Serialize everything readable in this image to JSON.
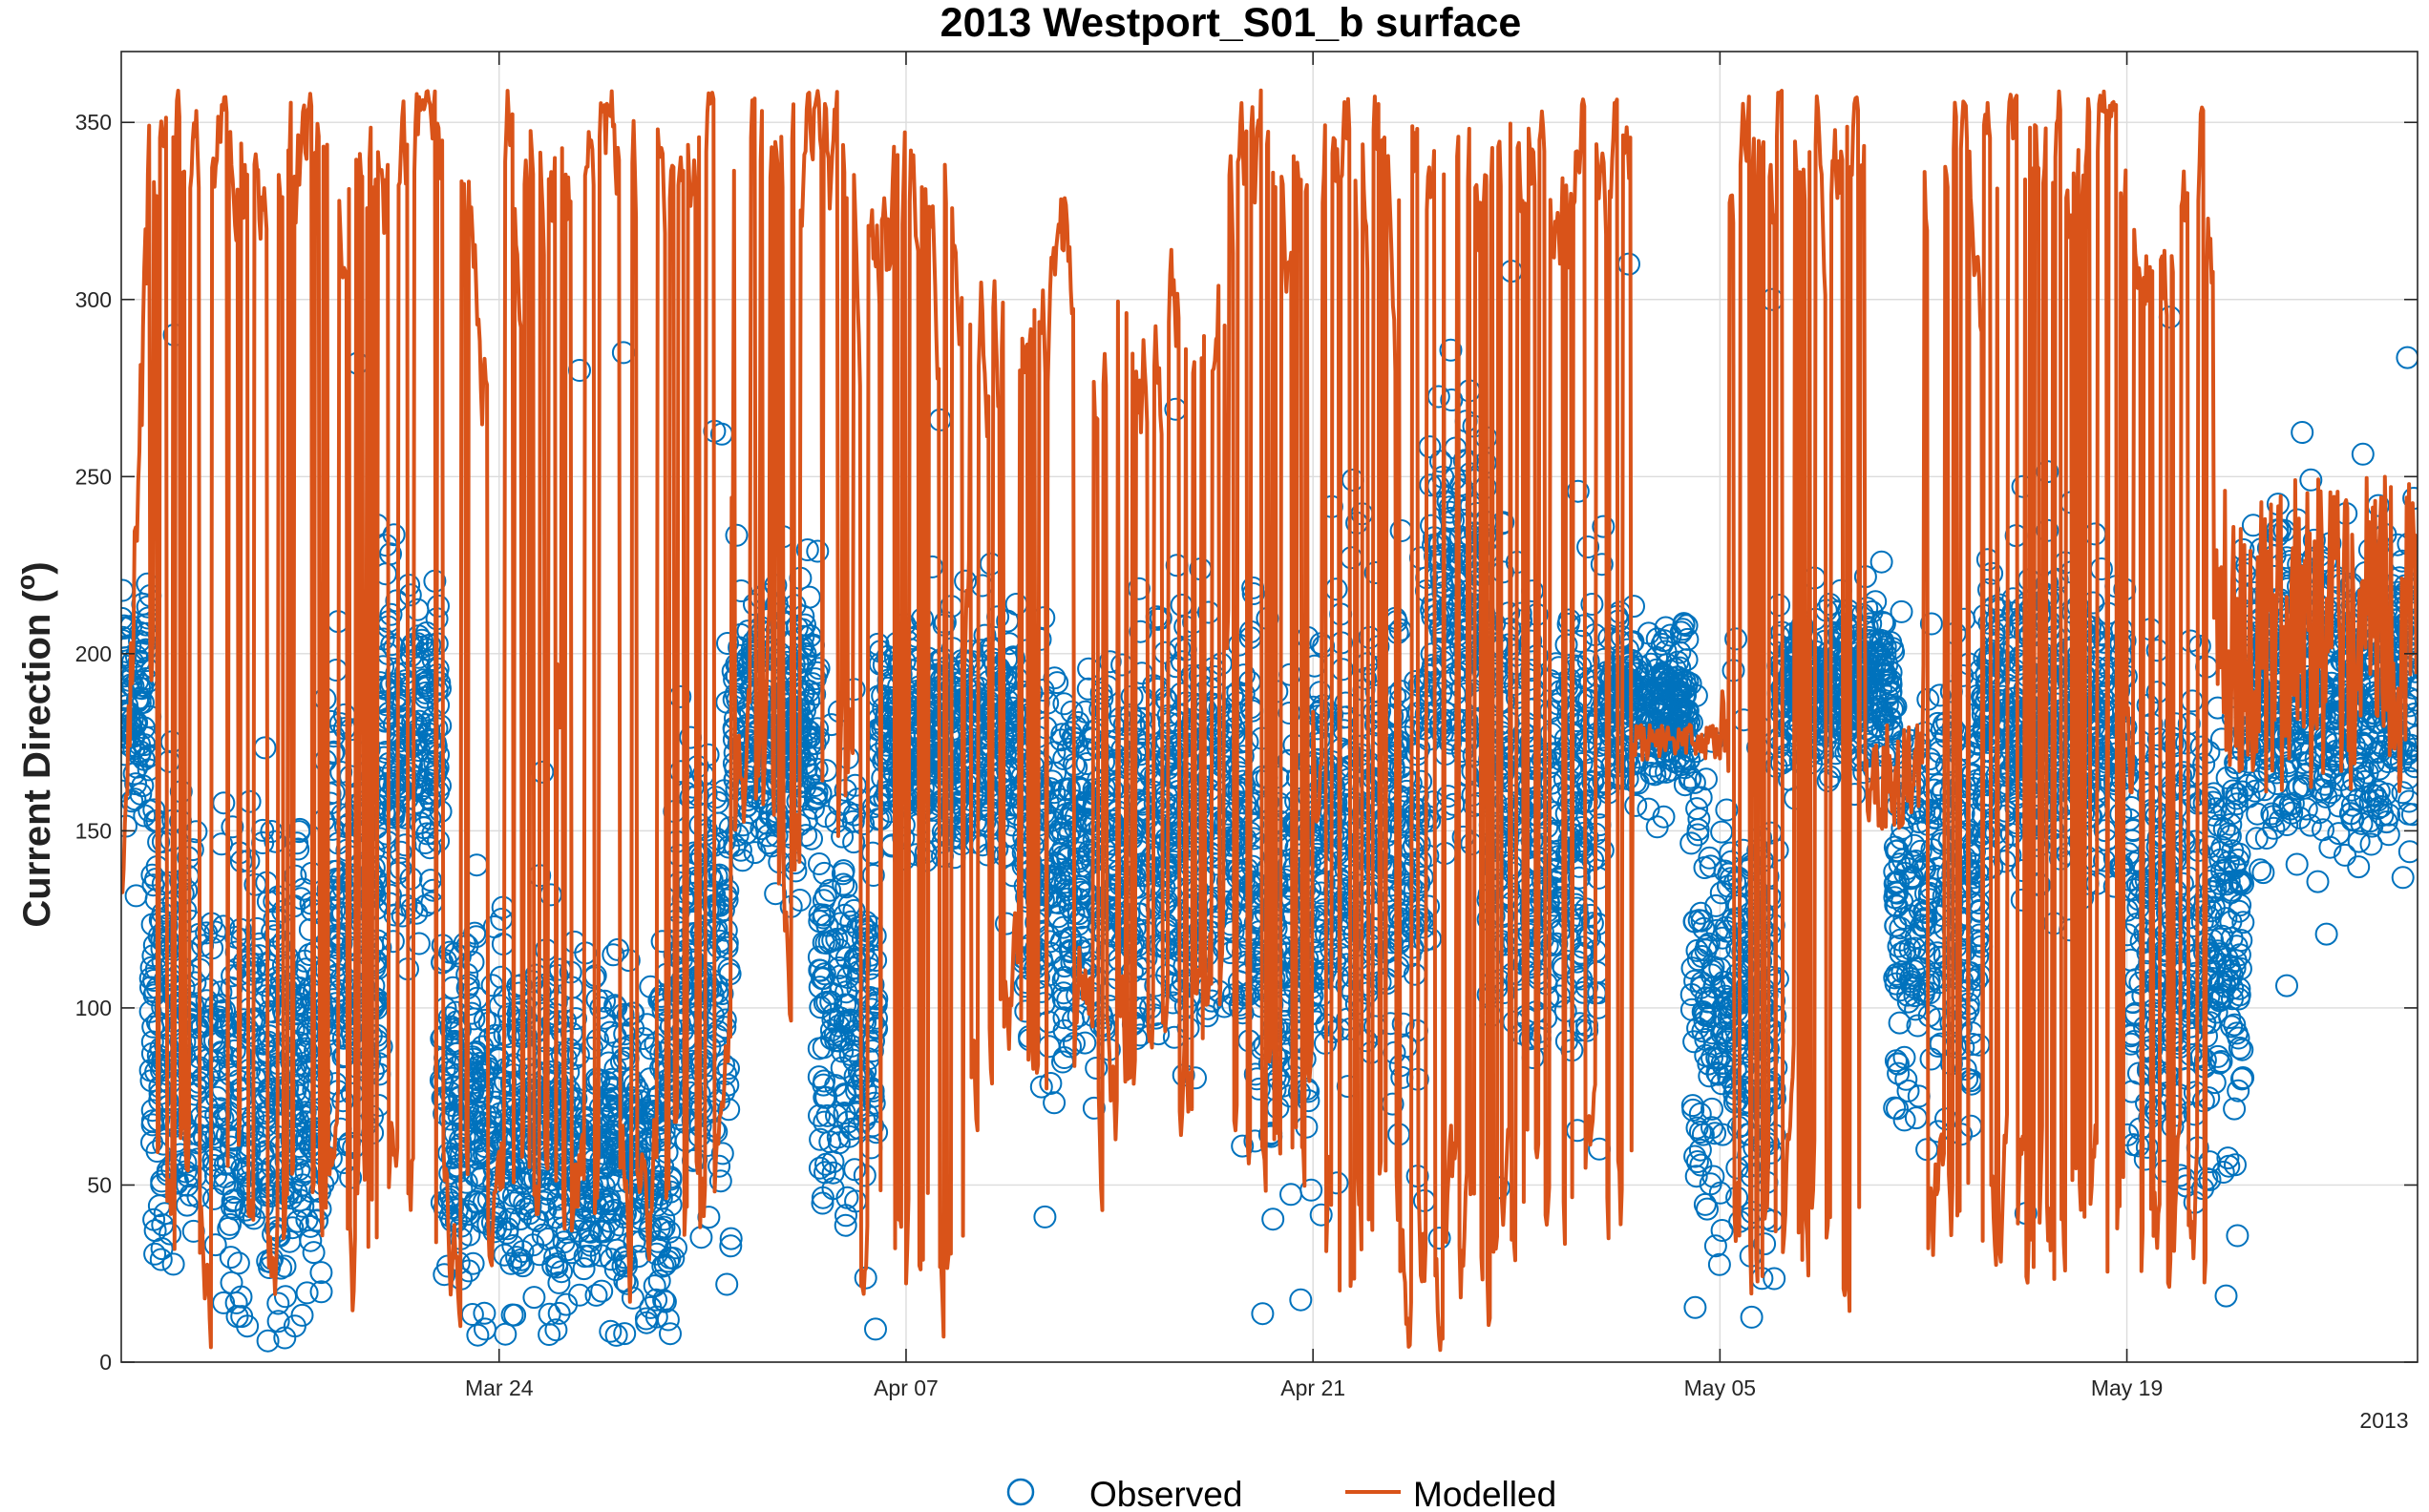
{
  "chart_data": {
    "type": "line",
    "title": "2013 Westport_S01_b surface",
    "xlabel": "",
    "ylabel": "Current Direction (°)",
    "ylabel_main": "Current Direction (",
    "ylabel_sup": "o",
    "ylabel_close": ")",
    "year_label": "2013",
    "x_range": [
      "2013-03-11",
      "2013-05-29"
    ],
    "ylim": [
      0,
      370
    ],
    "grid": true,
    "legend_position": "bottom-center",
    "x_ticks": [
      {
        "date": "2013-03-24",
        "label": "Mar 24"
      },
      {
        "date": "2013-04-07",
        "label": "Apr 07"
      },
      {
        "date": "2013-04-21",
        "label": "Apr 21"
      },
      {
        "date": "2013-05-05",
        "label": "May 05"
      },
      {
        "date": "2013-05-19",
        "label": "May 19"
      }
    ],
    "y_ticks": [
      0,
      50,
      100,
      150,
      200,
      250,
      300,
      350
    ],
    "series": [
      {
        "name": "Observed",
        "style": "circle",
        "color": "#0072BD",
        "bands": [
          {
            "start": "2013-03-11",
            "end": "2013-03-12",
            "center": 185,
            "spread": 30
          },
          {
            "start": "2013-03-12",
            "end": "2013-03-14",
            "center": 95,
            "spread": 55
          },
          {
            "start": "2013-03-14",
            "end": "2013-03-18",
            "center": 80,
            "spread": 60
          },
          {
            "start": "2013-03-18",
            "end": "2013-03-20",
            "center": 120,
            "spread": 60
          },
          {
            "start": "2013-03-20",
            "end": "2013-03-22",
            "center": 175,
            "spread": 45
          },
          {
            "start": "2013-03-22",
            "end": "2013-03-26",
            "center": 70,
            "spread": 50
          },
          {
            "start": "2013-03-26",
            "end": "2013-03-30",
            "center": 60,
            "spread": 45
          },
          {
            "start": "2013-03-30",
            "end": "2013-04-01",
            "center": 110,
            "spread": 65
          },
          {
            "start": "2013-04-01",
            "end": "2013-04-04",
            "center": 180,
            "spread": 35
          },
          {
            "start": "2013-04-04",
            "end": "2013-04-06",
            "center": 100,
            "spread": 55
          },
          {
            "start": "2013-04-06",
            "end": "2013-04-11",
            "center": 175,
            "spread": 30
          },
          {
            "start": "2013-04-11",
            "end": "2013-04-14",
            "center": 140,
            "spread": 55
          },
          {
            "start": "2013-04-14",
            "end": "2013-04-19",
            "center": 150,
            "spread": 55
          },
          {
            "start": "2013-04-19",
            "end": "2013-04-21",
            "center": 120,
            "spread": 60
          },
          {
            "start": "2013-04-21",
            "end": "2013-04-25",
            "center": 150,
            "spread": 60
          },
          {
            "start": "2013-04-25",
            "end": "2013-04-27",
            "center": 210,
            "spread": 55
          },
          {
            "start": "2013-04-27",
            "end": "2013-05-01",
            "center": 150,
            "spread": 60
          },
          {
            "start": "2013-05-01",
            "end": "2013-05-04",
            "center": 185,
            "spread": 20
          },
          {
            "start": "2013-05-04",
            "end": "2013-05-07",
            "center": 100,
            "spread": 60
          },
          {
            "start": "2013-05-07",
            "end": "2013-05-11",
            "center": 190,
            "spread": 20
          },
          {
            "start": "2013-05-11",
            "end": "2013-05-14",
            "center": 130,
            "spread": 60
          },
          {
            "start": "2013-05-14",
            "end": "2013-05-19",
            "center": 180,
            "spread": 40
          },
          {
            "start": "2013-05-19",
            "end": "2013-05-23",
            "center": 120,
            "spread": 60
          },
          {
            "start": "2013-05-23",
            "end": "2013-05-29",
            "center": 190,
            "spread": 40
          }
        ],
        "outliers": [
          {
            "date": "2013-03-12",
            "value": 290
          },
          {
            "date": "2013-03-19",
            "value": 282
          },
          {
            "date": "2013-03-26",
            "value": 280
          },
          {
            "date": "2013-03-28",
            "value": 285
          },
          {
            "date": "2013-03-31",
            "value": 262
          },
          {
            "date": "2013-04-08",
            "value": 266
          },
          {
            "date": "2013-04-16",
            "value": 269
          },
          {
            "date": "2013-04-27",
            "value": 308
          },
          {
            "date": "2013-05-01",
            "value": 310
          },
          {
            "date": "2013-05-06",
            "value": 300
          },
          {
            "date": "2013-05-20",
            "value": 295
          },
          {
            "date": "2013-04-11",
            "value": 41
          },
          {
            "date": "2013-04-25",
            "value": 35
          },
          {
            "date": "2013-05-15",
            "value": 42
          }
        ]
      },
      {
        "name": "Modelled",
        "style": "line",
        "color": "#D95319",
        "segments": [
          {
            "start": "2013-03-11",
            "end": "2013-03-12",
            "pattern": "rise",
            "base": 120,
            "high": 345
          },
          {
            "start": "2013-03-12",
            "end": "2013-03-26",
            "pattern": "wrap",
            "base": 30,
            "high": 350
          },
          {
            "start": "2013-03-26",
            "end": "2013-04-01",
            "pattern": "wrap",
            "base": 35,
            "high": 350
          },
          {
            "start": "2013-04-01",
            "end": "2013-04-05",
            "pattern": "wrap",
            "base": 130,
            "high": 350
          },
          {
            "start": "2013-04-05",
            "end": "2013-04-09",
            "pattern": "wrap",
            "base": 20,
            "high": 340
          },
          {
            "start": "2013-04-09",
            "end": "2013-04-18",
            "pattern": "wrap",
            "base": 70,
            "high": 300
          },
          {
            "start": "2013-04-18",
            "end": "2013-04-21",
            "pattern": "wrap",
            "base": 60,
            "high": 350
          },
          {
            "start": "2013-04-21",
            "end": "2013-04-28",
            "pattern": "wrap",
            "base": 20,
            "high": 350
          },
          {
            "start": "2013-04-28",
            "end": "2013-05-02",
            "pattern": "wrap",
            "base": 40,
            "high": 350
          },
          {
            "start": "2013-05-02",
            "end": "2013-05-05",
            "pattern": "flat",
            "base": 170,
            "high": 180
          },
          {
            "start": "2013-05-05",
            "end": "2013-05-10",
            "pattern": "wrap",
            "base": 20,
            "high": 350
          },
          {
            "start": "2013-05-10",
            "end": "2013-05-12",
            "pattern": "flat",
            "base": 150,
            "high": 180
          },
          {
            "start": "2013-05-12",
            "end": "2013-05-19",
            "pattern": "wrap",
            "base": 20,
            "high": 350
          },
          {
            "start": "2013-05-19",
            "end": "2013-05-22",
            "pattern": "wrap",
            "base": 15,
            "high": 330
          },
          {
            "start": "2013-05-22",
            "end": "2013-05-29",
            "pattern": "flat",
            "base": 160,
            "high": 250
          }
        ]
      }
    ]
  }
}
